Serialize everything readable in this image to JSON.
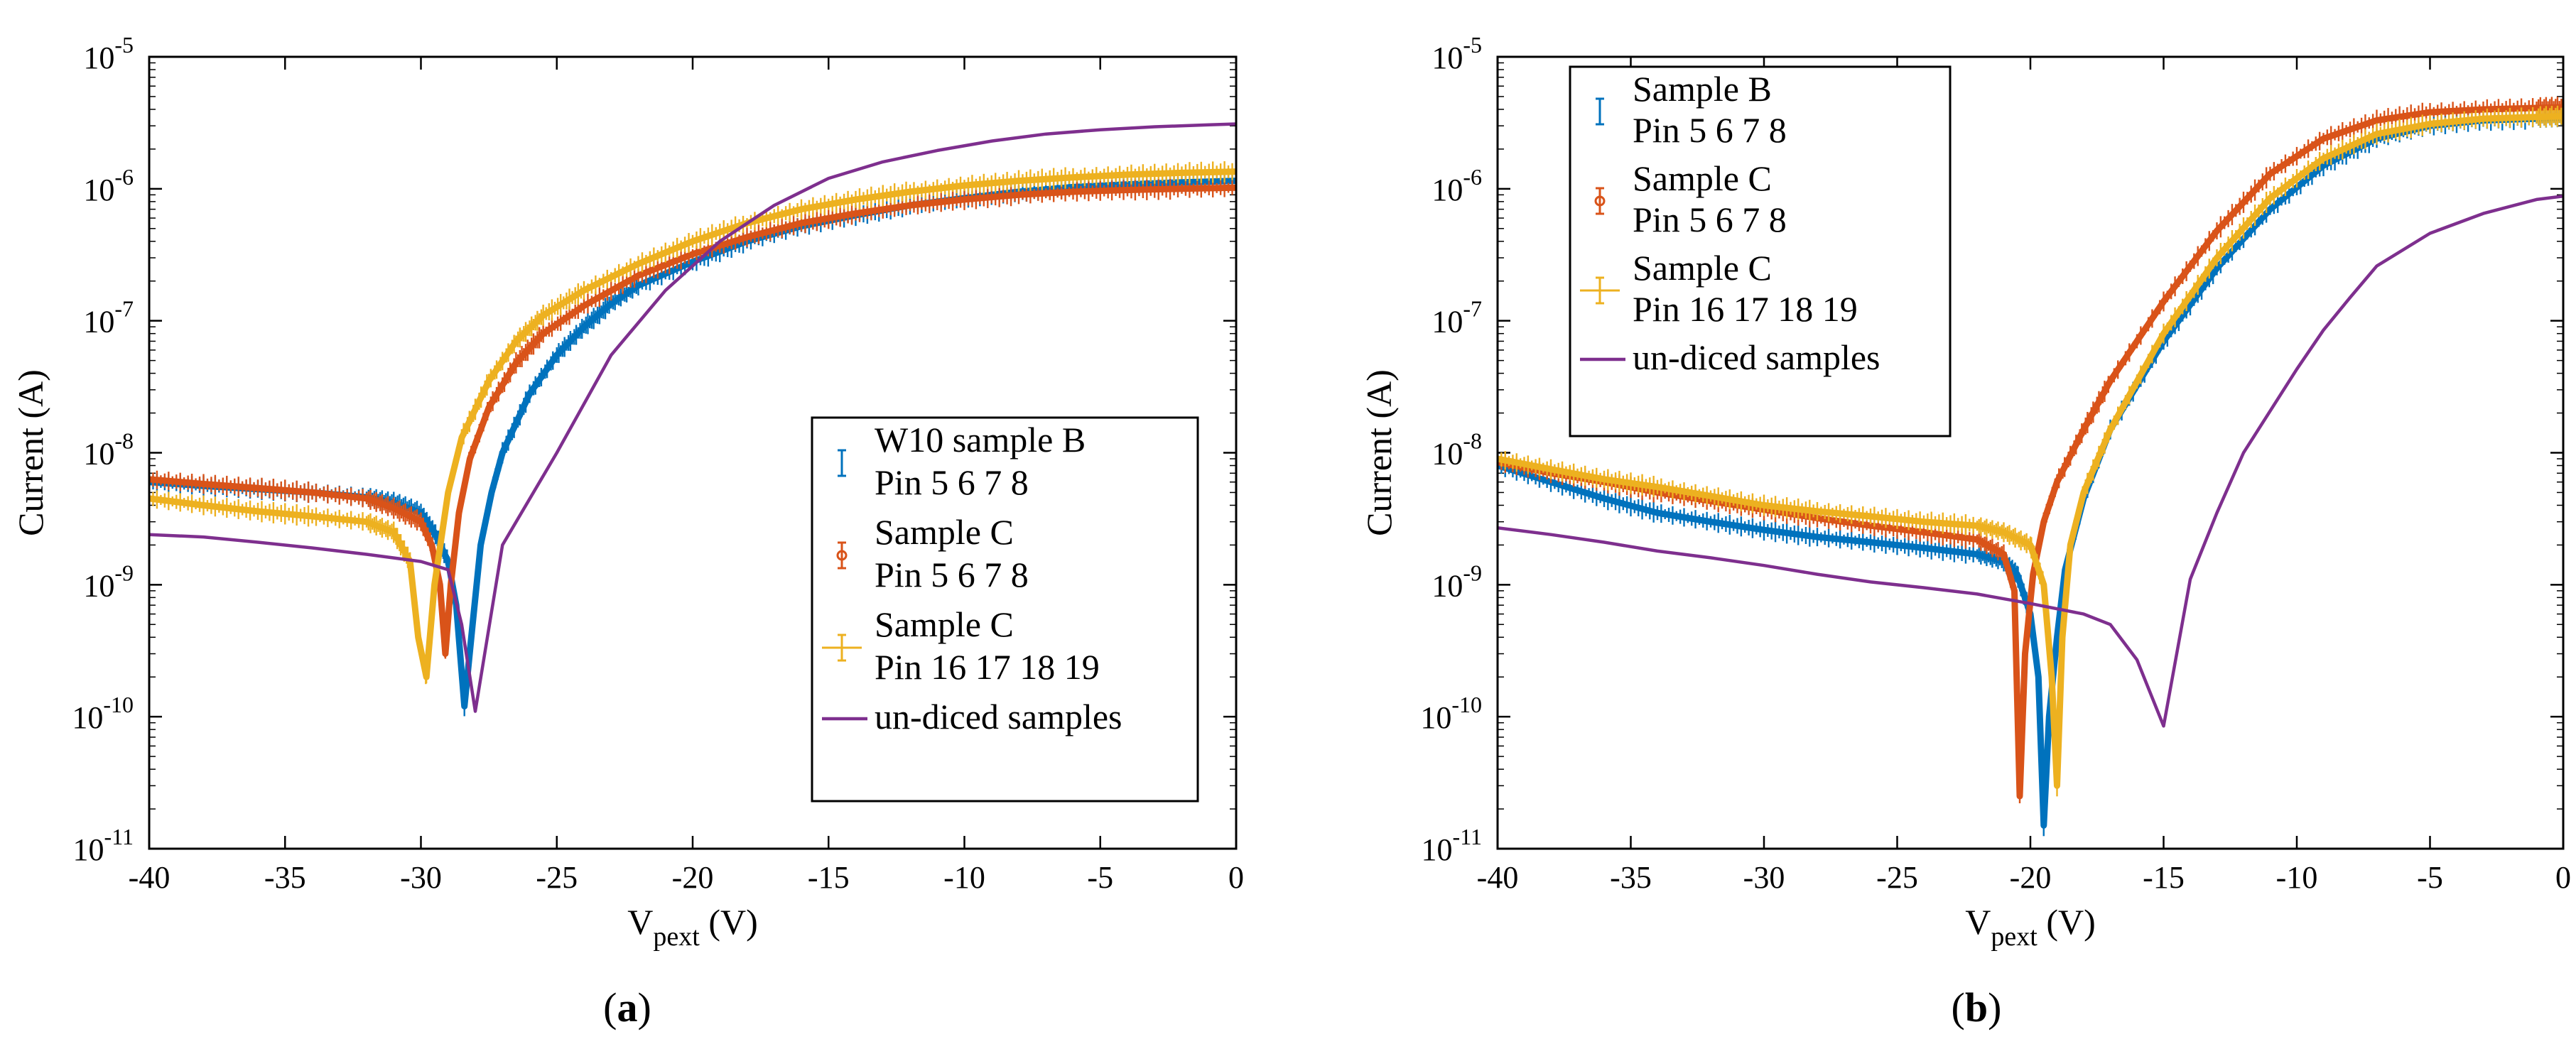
{
  "figure": {
    "panels": [
      {
        "label_open": "(",
        "label_letter": "a",
        "label_close": ")"
      },
      {
        "label_open": "(",
        "label_letter": "b",
        "label_close": ")"
      }
    ]
  },
  "chart_data": [
    {
      "type": "line",
      "panel": "a",
      "title": "",
      "xlabel": "V_pext (V)",
      "xlabel_main": "V",
      "xlabel_sub": "pext",
      "xlabel_unit": " (V)",
      "ylabel": "Current (A)",
      "xlim": [
        -40,
        0
      ],
      "ylim_log10": [
        -11,
        -5
      ],
      "yscale": "log",
      "xticks": [
        -40,
        -35,
        -30,
        -25,
        -20,
        -15,
        -10,
        -5,
        0
      ],
      "xtick_labels": [
        "-40",
        "-35",
        "-30",
        "-25",
        "-20",
        "-15",
        "-10",
        "-5",
        "0"
      ],
      "yticks_exp": [
        -11,
        -10,
        -9,
        -8,
        -7,
        -6,
        -5
      ],
      "ytick_base": "10",
      "ytick_exp_labels": [
        "-11",
        "-10",
        "-9",
        "-8",
        "-7",
        "-6",
        "-5"
      ],
      "legend_position": "lower-right",
      "series": [
        {
          "name": "W10 sample B Pin 5 6 7 8",
          "legend_lines": [
            "W10 sample B",
            "Pin 5 6 7 8"
          ],
          "color": "#0072BD",
          "marker": "errorbar",
          "points": [
            [
              -40,
              6e-09
            ],
            [
              -38,
              5.6e-09
            ],
            [
              -36,
              5.3e-09
            ],
            [
              -34,
              5e-09
            ],
            [
              -32,
              4.6e-09
            ],
            [
              -31,
              4.2e-09
            ],
            [
              -30,
              3.5e-09
            ],
            [
              -29.5,
              2.5e-09
            ],
            [
              -29,
              1.5e-09
            ],
            [
              -28.7,
              7e-10
            ],
            [
              -28.4,
              1.2e-10
            ],
            [
              -28.1,
              5e-10
            ],
            [
              -27.8,
              2e-09
            ],
            [
              -27.4,
              5e-09
            ],
            [
              -27,
              1e-08
            ],
            [
              -26,
              2.8e-08
            ],
            [
              -25,
              5.5e-08
            ],
            [
              -24,
              9e-08
            ],
            [
              -23,
              1.35e-07
            ],
            [
              -22,
              1.85e-07
            ],
            [
              -20,
              2.8e-07
            ],
            [
              -18,
              4e-07
            ],
            [
              -16,
              5.2e-07
            ],
            [
              -14,
              6.3e-07
            ],
            [
              -12,
              7.5e-07
            ],
            [
              -10,
              8.5e-07
            ],
            [
              -8,
              9.5e-07
            ],
            [
              -6,
              1.03e-06
            ],
            [
              -4,
              1.08e-06
            ],
            [
              -2,
              1.12e-06
            ],
            [
              0,
              1.15e-06
            ]
          ]
        },
        {
          "name": "Sample C Pin 5 6 7 8",
          "legend_lines": [
            "Sample C",
            "Pin 5 6 7 8"
          ],
          "color": "#D95319",
          "marker": "errorbar-circle",
          "points": [
            [
              -40,
              6.3e-09
            ],
            [
              -38,
              5.8e-09
            ],
            [
              -36,
              5.4e-09
            ],
            [
              -34,
              5e-09
            ],
            [
              -32,
              4.5e-09
            ],
            [
              -31,
              3.8e-09
            ],
            [
              -30,
              3e-09
            ],
            [
              -29.6,
              2e-09
            ],
            [
              -29.3,
              1e-09
            ],
            [
              -29.1,
              3e-10
            ],
            [
              -28.9,
              1e-09
            ],
            [
              -28.6,
              3.5e-09
            ],
            [
              -28.2,
              9e-09
            ],
            [
              -27.5,
              2.2e-08
            ],
            [
              -26.5,
              4.8e-08
            ],
            [
              -25.5,
              8e-08
            ],
            [
              -24,
              1.3e-07
            ],
            [
              -22,
              2.2e-07
            ],
            [
              -20,
              3.2e-07
            ],
            [
              -18,
              4.3e-07
            ],
            [
              -16,
              5.5e-07
            ],
            [
              -14,
              6.5e-07
            ],
            [
              -12,
              7.5e-07
            ],
            [
              -10,
              8.3e-07
            ],
            [
              -8,
              9e-07
            ],
            [
              -6,
              9.5e-07
            ],
            [
              -4,
              9.8e-07
            ],
            [
              -2,
              1e-06
            ],
            [
              0,
              1.02e-06
            ]
          ]
        },
        {
          "name": "Sample C Pin 16 17 18 19",
          "legend_lines": [
            "Sample C",
            "Pin 16 17 18 19"
          ],
          "color": "#EDB120",
          "marker": "errorbar-plus",
          "points": [
            [
              -40,
              4.5e-09
            ],
            [
              -38,
              4e-09
            ],
            [
              -36,
              3.6e-09
            ],
            [
              -34,
              3.3e-09
            ],
            [
              -32,
              3e-09
            ],
            [
              -31,
              2.5e-09
            ],
            [
              -30.4,
              1.5e-09
            ],
            [
              -30.1,
              4e-10
            ],
            [
              -29.8,
              2e-10
            ],
            [
              -29.5,
              1e-09
            ],
            [
              -29,
              5e-09
            ],
            [
              -28.5,
              1.3e-08
            ],
            [
              -27.5,
              3.5e-08
            ],
            [
              -26.5,
              7e-08
            ],
            [
              -25.5,
              1.1e-07
            ],
            [
              -24,
              1.7e-07
            ],
            [
              -22,
              2.7e-07
            ],
            [
              -20,
              4e-07
            ],
            [
              -18,
              5.5e-07
            ],
            [
              -16,
              7e-07
            ],
            [
              -14,
              8.3e-07
            ],
            [
              -12,
              9.5e-07
            ],
            [
              -10,
              1.06e-06
            ],
            [
              -8,
              1.15e-06
            ],
            [
              -6,
              1.22e-06
            ],
            [
              -4,
              1.28e-06
            ],
            [
              -2,
              1.32e-06
            ],
            [
              0,
              1.35e-06
            ]
          ]
        },
        {
          "name": "un-diced samples",
          "legend_lines": [
            "un-diced samples"
          ],
          "color": "#7E2F8E",
          "marker": "line",
          "points": [
            [
              -40,
              2.4e-09
            ],
            [
              -38,
              2.3e-09
            ],
            [
              -36,
              2.1e-09
            ],
            [
              -34,
              1.9e-09
            ],
            [
              -32,
              1.7e-09
            ],
            [
              -30,
              1.5e-09
            ],
            [
              -29,
              1.3e-09
            ],
            [
              -28.5,
              5e-10
            ],
            [
              -28,
              1.1e-10
            ],
            [
              -27,
              2e-09
            ],
            [
              -25,
              1e-08
            ],
            [
              -23,
              5.5e-08
            ],
            [
              -21,
              1.7e-07
            ],
            [
              -19,
              4e-07
            ],
            [
              -17,
              7.5e-07
            ],
            [
              -15,
              1.2e-06
            ],
            [
              -13,
              1.6e-06
            ],
            [
              -11,
              1.95e-06
            ],
            [
              -9,
              2.3e-06
            ],
            [
              -7,
              2.6e-06
            ],
            [
              -5,
              2.8e-06
            ],
            [
              -3,
              2.95e-06
            ],
            [
              -1,
              3.05e-06
            ],
            [
              0,
              3.1e-06
            ]
          ]
        }
      ]
    },
    {
      "type": "line",
      "panel": "b",
      "title": "",
      "xlabel": "V_pext (V)",
      "xlabel_main": "V",
      "xlabel_sub": "pext",
      "xlabel_unit": " (V)",
      "ylabel": "Current (A)",
      "xlim": [
        -40,
        0
      ],
      "ylim_log10": [
        -11,
        -5
      ],
      "yscale": "log",
      "xticks": [
        -40,
        -35,
        -30,
        -25,
        -20,
        -15,
        -10,
        -5,
        0
      ],
      "xtick_labels": [
        "-40",
        "-35",
        "-30",
        "-25",
        "-20",
        "-15",
        "-10",
        "-5",
        "0"
      ],
      "yticks_exp": [
        -11,
        -10,
        -9,
        -8,
        -7,
        -6,
        -5
      ],
      "ytick_base": "10",
      "ytick_exp_labels": [
        "-11",
        "-10",
        "-9",
        "-8",
        "-7",
        "-6",
        "-5"
      ],
      "legend_position": "upper-left",
      "series": [
        {
          "name": "Sample B Pin 5 6 7 8",
          "legend_lines": [
            "Sample B",
            "Pin 5 6 7 8"
          ],
          "color": "#0072BD",
          "marker": "errorbar",
          "points": [
            [
              -40,
              8e-09
            ],
            [
              -38,
              6e-09
            ],
            [
              -36,
              4.5e-09
            ],
            [
              -34,
              3.5e-09
            ],
            [
              -32,
              3e-09
            ],
            [
              -30,
              2.6e-09
            ],
            [
              -28,
              2.3e-09
            ],
            [
              -26,
              2.1e-09
            ],
            [
              -24,
              1.9e-09
            ],
            [
              -22,
              1.7e-09
            ],
            [
              -21,
              1.5e-09
            ],
            [
              -20.5,
              1.2e-09
            ],
            [
              -20,
              6e-10
            ],
            [
              -19.7,
              2e-10
            ],
            [
              -19.5,
              1.5e-11
            ],
            [
              -19.3,
              1e-10
            ],
            [
              -19,
              4e-10
            ],
            [
              -18.7,
              1.3e-09
            ],
            [
              -18,
              4.5e-09
            ],
            [
              -17,
              1.5e-08
            ],
            [
              -15,
              7e-08
            ],
            [
              -13,
              2.5e-07
            ],
            [
              -11,
              7e-07
            ],
            [
              -9,
              1.5e-06
            ],
            [
              -7,
              2.4e-06
            ],
            [
              -5,
              3e-06
            ],
            [
              -3,
              3.3e-06
            ],
            [
              -1,
              3.4e-06
            ],
            [
              0,
              3.45e-06
            ]
          ]
        },
        {
          "name": "Sample C Pin 5 6 7 8",
          "legend_lines": [
            "Sample C",
            "Pin 5 6 7 8"
          ],
          "color": "#D95319",
          "marker": "errorbar-circle",
          "points": [
            [
              -40,
              8.5e-09
            ],
            [
              -38,
              7e-09
            ],
            [
              -36,
              6e-09
            ],
            [
              -34,
              5e-09
            ],
            [
              -32,
              4.3e-09
            ],
            [
              -30,
              3.7e-09
            ],
            [
              -28,
              3.2e-09
            ],
            [
              -26,
              2.8e-09
            ],
            [
              -24,
              2.5e-09
            ],
            [
              -22,
              2.2e-09
            ],
            [
              -21,
              1.7e-09
            ],
            [
              -20.6,
              9e-10
            ],
            [
              -20.4,
              2.5e-11
            ],
            [
              -20.2,
              3e-10
            ],
            [
              -19.9,
              1.2e-09
            ],
            [
              -19.5,
              3e-09
            ],
            [
              -19,
              6e-09
            ],
            [
              -18,
              1.5e-08
            ],
            [
              -17,
              3.5e-08
            ],
            [
              -15,
              1.4e-07
            ],
            [
              -13,
              4.8e-07
            ],
            [
              -11,
              1.3e-06
            ],
            [
              -9,
              2.4e-06
            ],
            [
              -7,
              3.3e-06
            ],
            [
              -5,
              3.8e-06
            ],
            [
              -3,
              4e-06
            ],
            [
              -1,
              4.1e-06
            ],
            [
              0,
              4.15e-06
            ]
          ]
        },
        {
          "name": "Sample C Pin 16 17 18 19",
          "legend_lines": [
            "Sample C",
            "Pin 16 17 18 19"
          ],
          "color": "#EDB120",
          "marker": "errorbar-plus",
          "points": [
            [
              -40,
              9e-09
            ],
            [
              -38,
              7.5e-09
            ],
            [
              -36,
              6.3e-09
            ],
            [
              -34,
              5.5e-09
            ],
            [
              -32,
              4.7e-09
            ],
            [
              -30,
              4e-09
            ],
            [
              -28,
              3.6e-09
            ],
            [
              -26,
              3.3e-09
            ],
            [
              -24,
              3e-09
            ],
            [
              -22,
              2.8e-09
            ],
            [
              -21,
              2.5e-09
            ],
            [
              -20,
              2e-09
            ],
            [
              -19.5,
              1e-09
            ],
            [
              -19.2,
              2e-10
            ],
            [
              -19,
              3e-11
            ],
            [
              -18.8,
              4e-10
            ],
            [
              -18.5,
              2e-09
            ],
            [
              -18,
              5e-09
            ],
            [
              -17,
              1.5e-08
            ],
            [
              -15,
              8e-08
            ],
            [
              -13,
              3e-07
            ],
            [
              -11,
              8.5e-07
            ],
            [
              -9,
              1.7e-06
            ],
            [
              -7,
              2.6e-06
            ],
            [
              -5,
              3.1e-06
            ],
            [
              -3,
              3.4e-06
            ],
            [
              -1,
              3.5e-06
            ],
            [
              0,
              3.55e-06
            ]
          ]
        },
        {
          "name": "un-diced samples",
          "legend_lines": [
            "un-diced samples"
          ],
          "color": "#7E2F8E",
          "marker": "line",
          "points": [
            [
              -40,
              2.7e-09
            ],
            [
              -38,
              2.4e-09
            ],
            [
              -36,
              2.1e-09
            ],
            [
              -34,
              1.8e-09
            ],
            [
              -32,
              1.6e-09
            ],
            [
              -30,
              1.4e-09
            ],
            [
              -28,
              1.2e-09
            ],
            [
              -26,
              1.05e-09
            ],
            [
              -24,
              9.5e-10
            ],
            [
              -22,
              8.5e-10
            ],
            [
              -20,
              7.2e-10
            ],
            [
              -18,
              6e-10
            ],
            [
              -17,
              5e-10
            ],
            [
              -16,
              2.7e-10
            ],
            [
              -15,
              8.5e-11
            ],
            [
              -14,
              1.1e-09
            ],
            [
              -13,
              3.5e-09
            ],
            [
              -12,
              1e-08
            ],
            [
              -10,
              4.3e-08
            ],
            [
              -9,
              8.5e-08
            ],
            [
              -8,
              1.5e-07
            ],
            [
              -7,
              2.6e-07
            ],
            [
              -5,
              4.6e-07
            ],
            [
              -3,
              6.5e-07
            ],
            [
              -1,
              8.3e-07
            ],
            [
              0,
              8.8e-07
            ]
          ]
        }
      ]
    }
  ]
}
